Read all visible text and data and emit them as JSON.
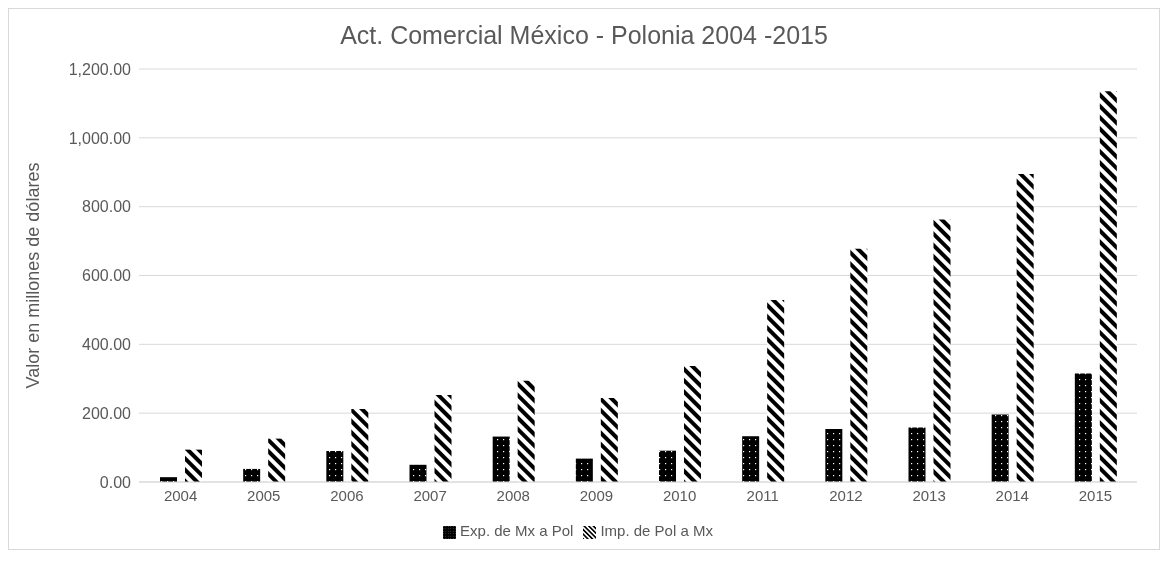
{
  "chart_data": {
    "type": "bar",
    "title": "Act. Comercial México - Polonia 2004 -2015",
    "ylabel": "Valor en millones de dólares",
    "categories": [
      "2004",
      "2005",
      "2006",
      "2007",
      "2008",
      "2009",
      "2010",
      "2011",
      "2012",
      "2013",
      "2014",
      "2015"
    ],
    "series": [
      {
        "name": "Exp. de Mx a Pol",
        "color": "#000000",
        "values": [
          14,
          38,
          90,
          50,
          132,
          68,
          91,
          133,
          154,
          158,
          196,
          315
        ]
      },
      {
        "name": "Imp. de Pol a Mx",
        "color": "#000000",
        "values": [
          94,
          126,
          212,
          253,
          294,
          244,
          337,
          529,
          678,
          763,
          895,
          1135
        ]
      }
    ],
    "ylim": [
      0,
      1200
    ],
    "yticks": [
      {
        "value": 0,
        "label": "0.00"
      },
      {
        "value": 200,
        "label": "200.00"
      },
      {
        "value": 400,
        "label": "400.00"
      },
      {
        "value": 600,
        "label": "600.00"
      },
      {
        "value": 800,
        "label": "800.00"
      },
      {
        "value": 1000,
        "label": "1,000.00"
      },
      {
        "value": 1200,
        "label": "1,200.00"
      }
    ],
    "grid": "y",
    "legend": "bottom"
  }
}
